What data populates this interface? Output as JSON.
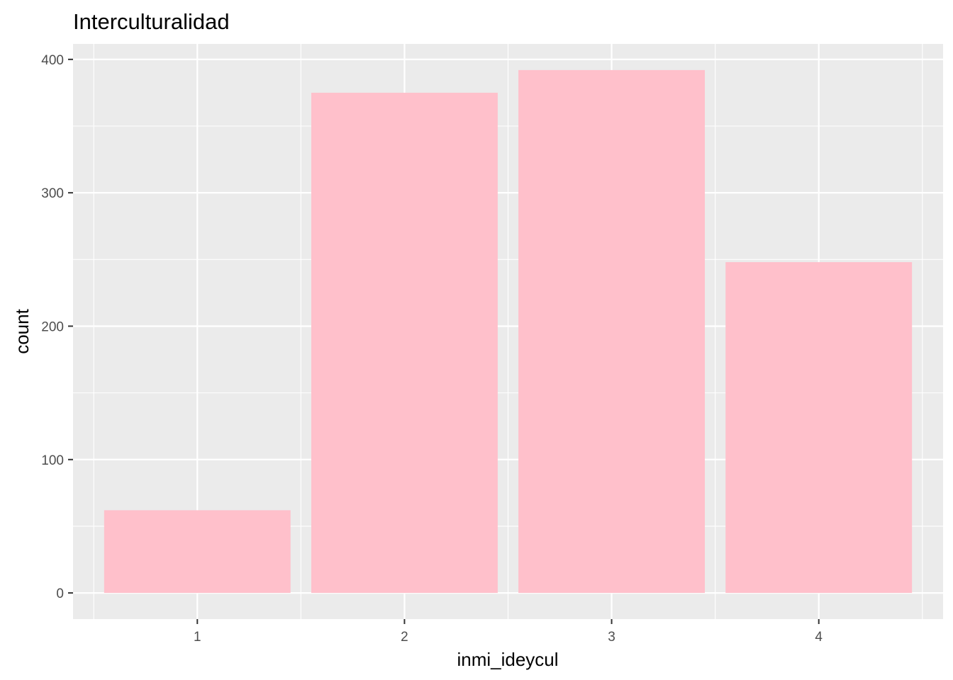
{
  "chart_data": {
    "type": "bar",
    "title": "Interculturalidad",
    "xlabel": "inmi_ideycul",
    "ylabel": "count",
    "categories": [
      "1",
      "2",
      "3",
      "4"
    ],
    "values": [
      62,
      375,
      392,
      248
    ],
    "ylim": [
      -19.6,
      411.6
    ],
    "yticks": [
      0,
      100,
      200,
      300,
      400
    ],
    "ytick_labels": [
      "0",
      "100",
      "200",
      "300",
      "400"
    ],
    "grid": true,
    "legend": "none",
    "colors": {
      "bar_fill": "#ffc0cb",
      "panel_background": "#ebebeb",
      "grid_line": "#ffffff",
      "tick_mark": "#333333",
      "tick_text": "#4d4d4d"
    }
  }
}
